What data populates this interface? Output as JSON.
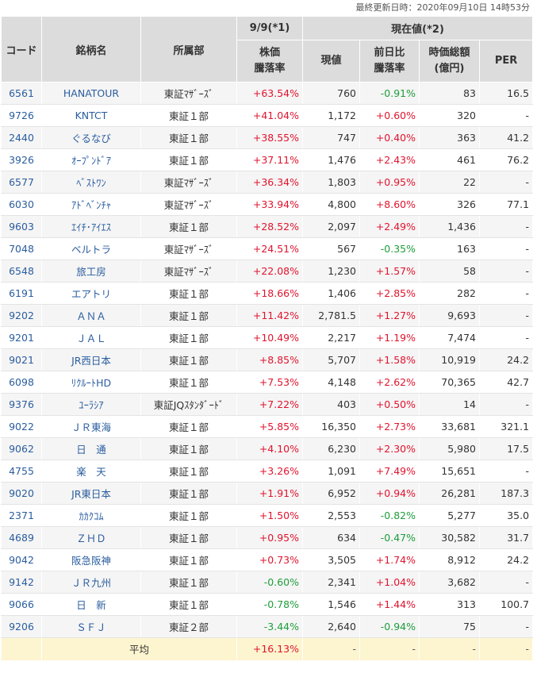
{
  "last_updated": "最終更新日時：2020年09月10日 14時53分",
  "headers": {
    "code": "コード",
    "name": "銘柄名",
    "market": "所属部",
    "group_99": "9/9(*1)",
    "group_current": "現在値(*2)",
    "change_rate_line1": "株価",
    "change_rate_line2": "騰落率",
    "price": "現値",
    "day_change_line1": "前日比",
    "day_change_line2": "騰落率",
    "market_cap_line1": "時価総額",
    "market_cap_line2": "(億円)",
    "per": "PER"
  },
  "rows": [
    {
      "code": "6561",
      "name": "HANATOUR",
      "market": "東証ﾏｻﾞｰｽﾞ",
      "rate99": "+63.54%",
      "price": "760",
      "day": "-0.91%",
      "cap": "83",
      "per": "16.5"
    },
    {
      "code": "9726",
      "name": "KNTCT",
      "market": "東証１部",
      "rate99": "+41.04%",
      "price": "1,172",
      "day": "+0.60%",
      "cap": "320",
      "per": "-"
    },
    {
      "code": "2440",
      "name": "ぐるなび",
      "market": "東証１部",
      "rate99": "+38.55%",
      "price": "747",
      "day": "+0.40%",
      "cap": "363",
      "per": "41.2"
    },
    {
      "code": "3926",
      "name": "ｵｰﾌﾟﾝﾄﾞｱ",
      "market": "東証１部",
      "rate99": "+37.11%",
      "price": "1,476",
      "day": "+2.43%",
      "cap": "461",
      "per": "76.2"
    },
    {
      "code": "6577",
      "name": "ﾍﾞｽﾄﾜﾝ",
      "market": "東証ﾏｻﾞｰｽﾞ",
      "rate99": "+36.34%",
      "price": "1,803",
      "day": "+0.95%",
      "cap": "22",
      "per": "-"
    },
    {
      "code": "6030",
      "name": "ｱﾄﾞﾍﾞﾝﾁｬ",
      "market": "東証ﾏｻﾞｰｽﾞ",
      "rate99": "+33.94%",
      "price": "4,800",
      "day": "+8.60%",
      "cap": "326",
      "per": "77.1"
    },
    {
      "code": "9603",
      "name": "ｴｲﾁ･ｱｲｴｽ",
      "market": "東証１部",
      "rate99": "+28.52%",
      "price": "2,097",
      "day": "+2.49%",
      "cap": "1,436",
      "per": "-"
    },
    {
      "code": "7048",
      "name": "ベルトラ",
      "market": "東証ﾏｻﾞｰｽﾞ",
      "rate99": "+24.51%",
      "price": "567",
      "day": "-0.35%",
      "cap": "163",
      "per": "-"
    },
    {
      "code": "6548",
      "name": "旅工房",
      "market": "東証ﾏｻﾞｰｽﾞ",
      "rate99": "+22.08%",
      "price": "1,230",
      "day": "+1.57%",
      "cap": "58",
      "per": "-"
    },
    {
      "code": "6191",
      "name": "エアトリ",
      "market": "東証１部",
      "rate99": "+18.66%",
      "price": "1,406",
      "day": "+2.85%",
      "cap": "282",
      "per": "-"
    },
    {
      "code": "9202",
      "name": "ＡＮＡ",
      "market": "東証１部",
      "rate99": "+11.42%",
      "price": "2,781.5",
      "day": "+1.27%",
      "cap": "9,693",
      "per": "-"
    },
    {
      "code": "9201",
      "name": "ＪＡＬ",
      "market": "東証１部",
      "rate99": "+10.49%",
      "price": "2,217",
      "day": "+1.19%",
      "cap": "7,474",
      "per": "-"
    },
    {
      "code": "9021",
      "name": "JR西日本",
      "market": "東証１部",
      "rate99": "+8.85%",
      "price": "5,707",
      "day": "+1.58%",
      "cap": "10,919",
      "per": "24.2"
    },
    {
      "code": "6098",
      "name": "ﾘｸﾙｰﾄHD",
      "market": "東証１部",
      "rate99": "+7.53%",
      "price": "4,148",
      "day": "+2.62%",
      "cap": "70,365",
      "per": "42.7"
    },
    {
      "code": "9376",
      "name": "ﾕｰﾗｼｱ",
      "market": "東証JQｽﾀﾝﾀﾞｰﾄﾞ",
      "rate99": "+7.22%",
      "price": "403",
      "day": "+0.50%",
      "cap": "14",
      "per": "-"
    },
    {
      "code": "9022",
      "name": "ＪＲ東海",
      "market": "東証１部",
      "rate99": "+5.85%",
      "price": "16,350",
      "day": "+2.73%",
      "cap": "33,681",
      "per": "321.1"
    },
    {
      "code": "9062",
      "name": "日　通",
      "market": "東証１部",
      "rate99": "+4.10%",
      "price": "6,230",
      "day": "+2.30%",
      "cap": "5,980",
      "per": "17.5"
    },
    {
      "code": "4755",
      "name": "楽　天",
      "market": "東証１部",
      "rate99": "+3.26%",
      "price": "1,091",
      "day": "+7.49%",
      "cap": "15,651",
      "per": "-"
    },
    {
      "code": "9020",
      "name": "JR東日本",
      "market": "東証１部",
      "rate99": "+1.91%",
      "price": "6,952",
      "day": "+0.94%",
      "cap": "26,281",
      "per": "187.3"
    },
    {
      "code": "2371",
      "name": "ｶｶｸｺﾑ",
      "market": "東証１部",
      "rate99": "+1.50%",
      "price": "2,553",
      "day": "-0.82%",
      "cap": "5,277",
      "per": "35.0"
    },
    {
      "code": "4689",
      "name": "ＺＨＤ",
      "market": "東証１部",
      "rate99": "+0.95%",
      "price": "634",
      "day": "-0.47%",
      "cap": "30,582",
      "per": "31.7"
    },
    {
      "code": "9042",
      "name": "阪急阪神",
      "market": "東証１部",
      "rate99": "+0.73%",
      "price": "3,505",
      "day": "+1.74%",
      "cap": "8,912",
      "per": "24.2"
    },
    {
      "code": "9142",
      "name": "ＪＲ九州",
      "market": "東証１部",
      "rate99": "-0.60%",
      "price": "2,341",
      "day": "+1.04%",
      "cap": "3,682",
      "per": "-"
    },
    {
      "code": "9066",
      "name": "日　新",
      "market": "東証１部",
      "rate99": "-0.78%",
      "price": "1,546",
      "day": "+1.44%",
      "cap": "313",
      "per": "100.7"
    },
    {
      "code": "9206",
      "name": "ＳＦＪ",
      "market": "東証２部",
      "rate99": "-3.44%",
      "price": "2,640",
      "day": "-0.94%",
      "cap": "75",
      "per": "-"
    }
  ],
  "average": {
    "label": "平均",
    "rate99": "+16.13%",
    "price": "-",
    "day": "-",
    "cap": "-",
    "per": "-"
  },
  "colors": {
    "positive": "#e0142e",
    "negative": "#1e9e3a",
    "link": "#2a5d9f",
    "header_bg": "#dcdcdc",
    "average_bg": "#fdf5cf"
  }
}
